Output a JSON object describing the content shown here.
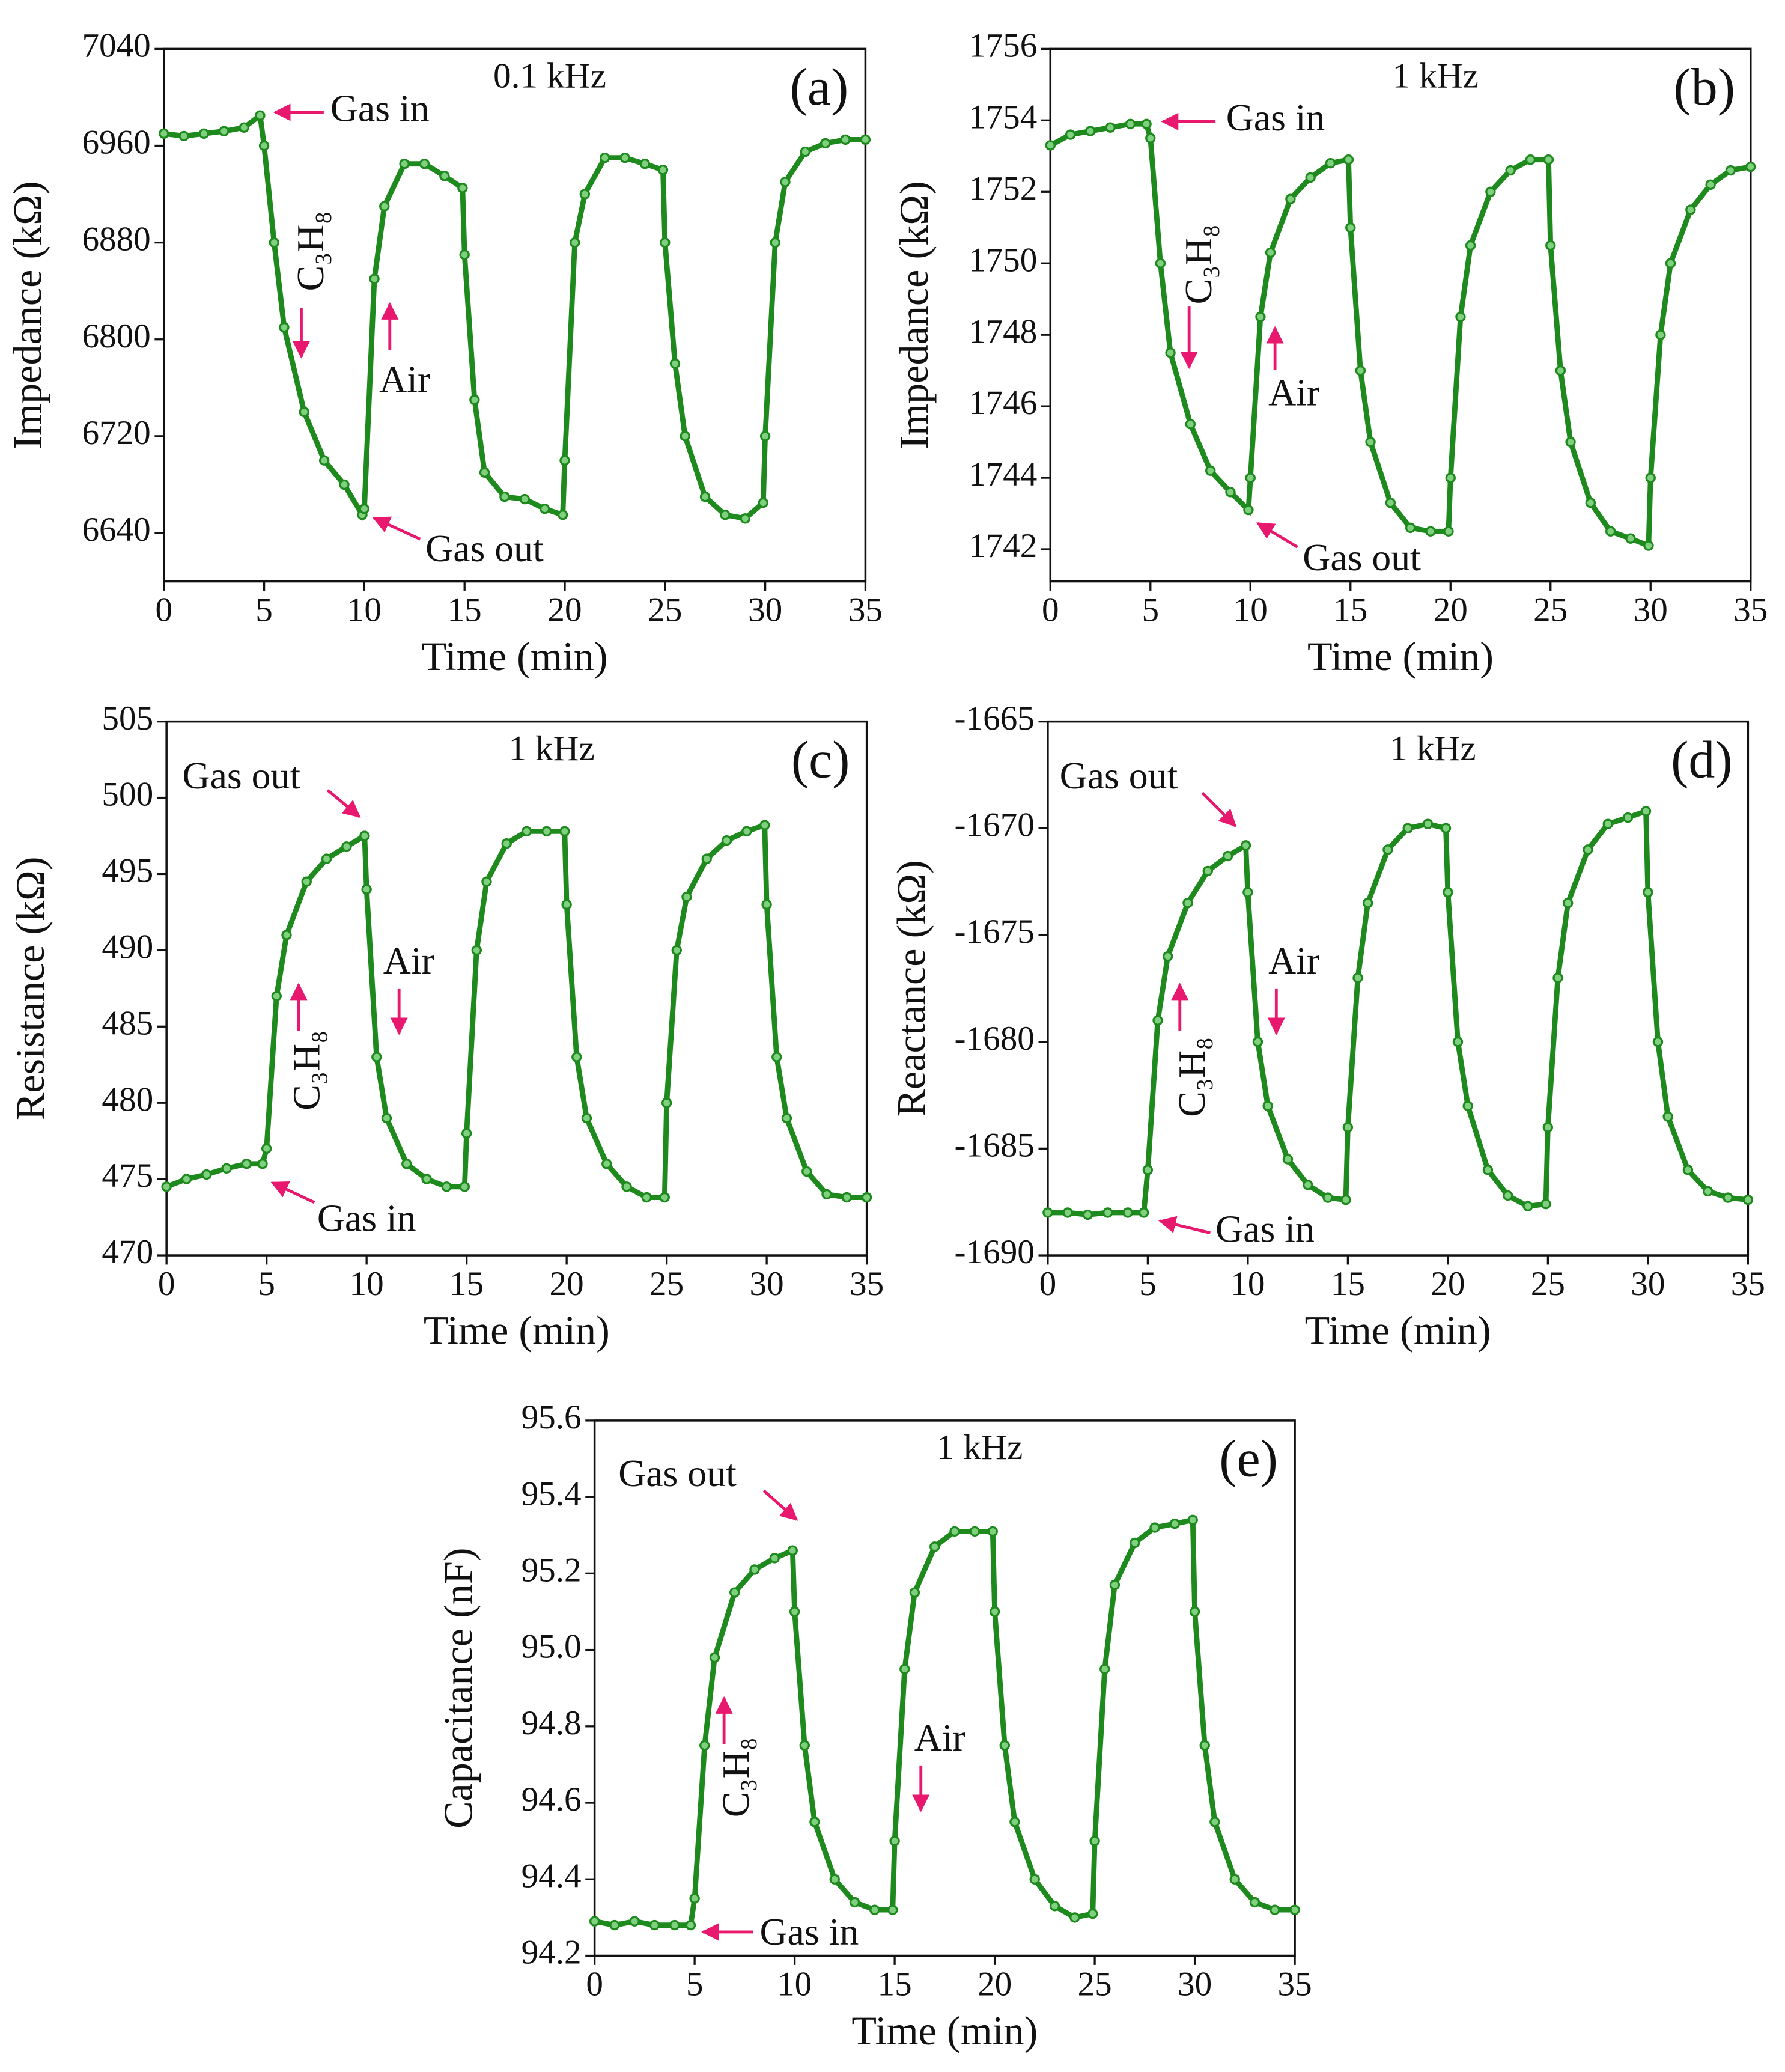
{
  "chart_data": [
    {
      "type": "line",
      "frequency": "0.1 kHz",
      "panel": "(a)",
      "xlabel": "Time (min)",
      "ylabel": "Impedance (kΩ)",
      "color": "#1e8a1e",
      "xlim": [
        0,
        35
      ],
      "xticks": [
        0,
        5,
        10,
        15,
        20,
        25,
        30,
        35
      ],
      "ylim": [
        6600,
        7040
      ],
      "yticks": [
        6640,
        6720,
        6800,
        6880,
        6960,
        7040
      ],
      "annotations": [
        "Gas in",
        "C₃H₈",
        "Air",
        "Gas out"
      ],
      "x": [
        0,
        1,
        2,
        3,
        4,
        4.8,
        5,
        5.5,
        6,
        7,
        8,
        9,
        9.9,
        10,
        10.5,
        11,
        12,
        13,
        14,
        14.9,
        15,
        15.5,
        16,
        17,
        18,
        19,
        19.9,
        20,
        20.5,
        21,
        22,
        23,
        24,
        24.9,
        25,
        25.5,
        26,
        27,
        28,
        29,
        29.9,
        30,
        30.5,
        31,
        32,
        33,
        34,
        35
      ],
      "values": [
        6970,
        6968,
        6970,
        6972,
        6975,
        6985,
        6960,
        6880,
        6810,
        6740,
        6700,
        6680,
        6655,
        6660,
        6850,
        6910,
        6945,
        6945,
        6935,
        6925,
        6870,
        6750,
        6690,
        6670,
        6668,
        6660,
        6655,
        6700,
        6880,
        6920,
        6950,
        6950,
        6945,
        6940,
        6880,
        6780,
        6720,
        6670,
        6655,
        6652,
        6665,
        6720,
        6880,
        6930,
        6955,
        6962,
        6965,
        6965
      ]
    },
    {
      "type": "line",
      "frequency": "1 kHz",
      "panel": "(b)",
      "xlabel": "Time (min)",
      "ylabel": "Impedance (kΩ)",
      "color": "#1e8a1e",
      "xlim": [
        0,
        35
      ],
      "xticks": [
        0,
        5,
        10,
        15,
        20,
        25,
        30,
        35
      ],
      "ylim": [
        1741.1,
        1756
      ],
      "yticks": [
        1742,
        1744,
        1746,
        1748,
        1750,
        1752,
        1754,
        1756
      ],
      "annotations": [
        "Gas in",
        "C₃H₈",
        "Air",
        "Gas out"
      ],
      "x": [
        0,
        1,
        2,
        3,
        4,
        4.8,
        5,
        5.5,
        6,
        7,
        8,
        9,
        9.9,
        10,
        10.5,
        11,
        12,
        13,
        14,
        14.9,
        15,
        15.5,
        16,
        17,
        18,
        19,
        19.9,
        20,
        20.5,
        21,
        22,
        23,
        24,
        24.9,
        25,
        25.5,
        26,
        27,
        28,
        29,
        29.9,
        30,
        30.5,
        31,
        32,
        33,
        34,
        35
      ],
      "values": [
        1753.3,
        1753.6,
        1753.7,
        1753.8,
        1753.9,
        1753.9,
        1753.5,
        1750,
        1747.5,
        1745.5,
        1744.2,
        1743.6,
        1743.1,
        1744,
        1748.5,
        1750.3,
        1751.8,
        1752.4,
        1752.8,
        1752.9,
        1751,
        1747,
        1745,
        1743.3,
        1742.6,
        1742.5,
        1742.5,
        1744,
        1748.5,
        1750.5,
        1752,
        1752.6,
        1752.9,
        1752.9,
        1750.5,
        1747,
        1745,
        1743.3,
        1742.5,
        1742.3,
        1742.1,
        1744,
        1748,
        1750,
        1751.5,
        1752.2,
        1752.6,
        1752.7
      ]
    },
    {
      "type": "line",
      "frequency": "1 kHz",
      "panel": "(c)",
      "xlabel": "Time (min)",
      "ylabel": "Resistance (kΩ)",
      "color": "#1e8a1e",
      "xlim": [
        0,
        35
      ],
      "xticks": [
        0,
        5,
        10,
        15,
        20,
        25,
        30,
        35
      ],
      "ylim": [
        470,
        505
      ],
      "yticks": [
        470,
        475,
        480,
        485,
        490,
        495,
        500,
        505
      ],
      "annotations": [
        "Gas out",
        "Air",
        "C₃H₈",
        "Gas in"
      ],
      "x": [
        0,
        1,
        2,
        3,
        4,
        4.8,
        5,
        5.5,
        6,
        7,
        8,
        9,
        9.9,
        10,
        10.5,
        11,
        12,
        13,
        14,
        14.9,
        15,
        15.5,
        16,
        17,
        18,
        19,
        19.9,
        20,
        20.5,
        21,
        22,
        23,
        24,
        24.9,
        25,
        25.5,
        26,
        27,
        28,
        29,
        29.9,
        30,
        30.5,
        31,
        32,
        33,
        34,
        35
      ],
      "values": [
        474.5,
        475,
        475.3,
        475.7,
        476,
        476,
        477,
        487,
        491,
        494.5,
        496,
        496.8,
        497.5,
        494,
        483,
        479,
        476,
        475,
        474.5,
        474.5,
        478,
        490,
        494.5,
        497,
        497.8,
        497.8,
        497.8,
        493,
        483,
        479,
        476,
        474.5,
        473.8,
        473.8,
        480,
        490,
        493.5,
        496,
        497.2,
        497.8,
        498.2,
        493,
        483,
        479,
        475.5,
        474,
        473.8,
        473.8
      ]
    },
    {
      "type": "line",
      "frequency": "1 kHz",
      "panel": "(d)",
      "xlabel": "Time (min)",
      "ylabel": "Reactance (kΩ)",
      "color": "#1e8a1e",
      "xlim": [
        0,
        35
      ],
      "xticks": [
        0,
        5,
        10,
        15,
        20,
        25,
        30,
        35
      ],
      "ylim": [
        -1690,
        -1665
      ],
      "yticks": [
        -1690,
        -1685,
        -1680,
        -1675,
        -1670,
        -1665
      ],
      "annotations": [
        "Gas out",
        "Air",
        "C₃H₈",
        "Gas in"
      ],
      "x": [
        0,
        1,
        2,
        3,
        4,
        4.8,
        5,
        5.5,
        6,
        7,
        8,
        9,
        9.9,
        10,
        10.5,
        11,
        12,
        13,
        14,
        14.9,
        15,
        15.5,
        16,
        17,
        18,
        19,
        19.9,
        20,
        20.5,
        21,
        22,
        23,
        24,
        24.9,
        25,
        25.5,
        26,
        27,
        28,
        29,
        29.9,
        30,
        30.5,
        31,
        32,
        33,
        34,
        35
      ],
      "values": [
        -1688,
        -1688,
        -1688.1,
        -1688,
        -1688,
        -1688,
        -1686,
        -1679,
        -1676,
        -1673.5,
        -1672,
        -1671.3,
        -1670.8,
        -1673,
        -1680,
        -1683,
        -1685.5,
        -1686.7,
        -1687.3,
        -1687.4,
        -1684,
        -1677,
        -1673.5,
        -1671,
        -1670,
        -1669.8,
        -1670,
        -1673,
        -1680,
        -1683,
        -1686,
        -1687.2,
        -1687.7,
        -1687.6,
        -1684,
        -1677,
        -1673.5,
        -1671,
        -1669.8,
        -1669.5,
        -1669.2,
        -1673,
        -1680,
        -1683.5,
        -1686,
        -1687,
        -1687.3,
        -1687.4
      ]
    },
    {
      "type": "line",
      "frequency": "1 kHz",
      "panel": "(e)",
      "xlabel": "Time (min)",
      "ylabel": "Capacitance (nF)",
      "color": "#1e8a1e",
      "xlim": [
        0,
        35
      ],
      "xticks": [
        0,
        5,
        10,
        15,
        20,
        25,
        30,
        35
      ],
      "ylim": [
        94.2,
        95.6
      ],
      "yticks": [
        94.2,
        94.4,
        94.6,
        94.8,
        {
          "value": 95,
          "label": "95.0"
        },
        95.2,
        95.4,
        95.6
      ],
      "annotations": [
        "Gas out",
        "C₃H₈",
        "Air",
        "Gas in"
      ],
      "x": [
        0,
        1,
        2,
        3,
        4,
        4.8,
        5,
        5.5,
        6,
        7,
        8,
        9,
        9.9,
        10,
        10.5,
        11,
        12,
        13,
        14,
        14.9,
        15,
        15.5,
        16,
        17,
        18,
        19,
        19.9,
        20,
        20.5,
        21,
        22,
        23,
        24,
        24.9,
        25,
        25.5,
        26,
        27,
        28,
        29,
        29.9,
        30,
        30.5,
        31,
        32,
        33,
        34,
        35
      ],
      "values": [
        94.29,
        94.28,
        94.29,
        94.28,
        94.28,
        94.28,
        94.35,
        94.75,
        94.98,
        95.15,
        95.21,
        95.24,
        95.26,
        95.1,
        94.75,
        94.55,
        94.4,
        94.34,
        94.32,
        94.32,
        94.5,
        94.95,
        95.15,
        95.27,
        95.31,
        95.31,
        95.31,
        95.1,
        94.75,
        94.55,
        94.4,
        94.33,
        94.3,
        94.31,
        94.5,
        94.95,
        95.17,
        95.28,
        95.32,
        95.33,
        95.34,
        95.1,
        94.75,
        94.55,
        94.4,
        94.34,
        94.32,
        94.32
      ]
    }
  ]
}
